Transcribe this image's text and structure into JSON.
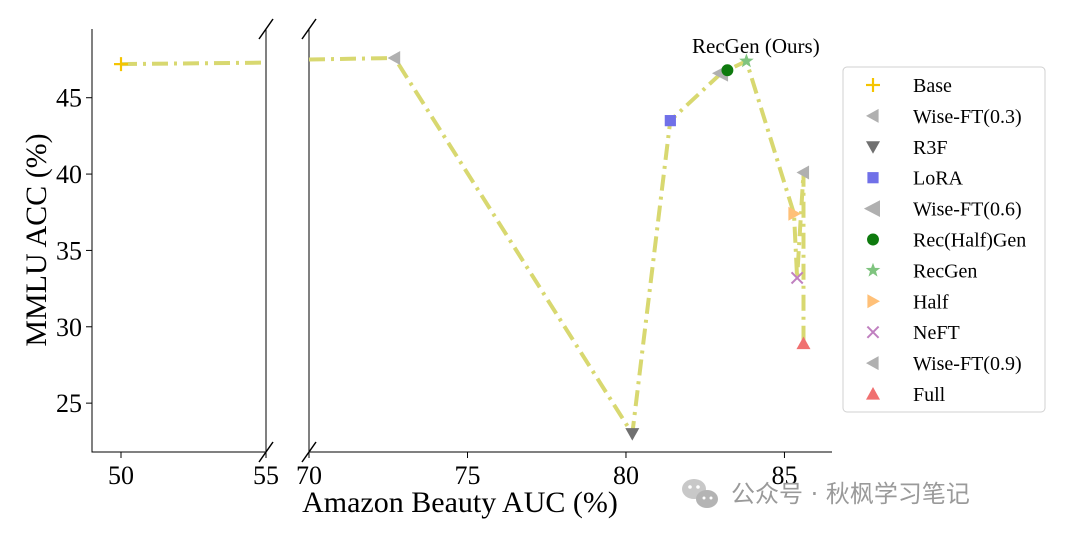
{
  "chart_data": {
    "type": "scatter",
    "xlabel": "Amazon Beauty AUC (%)",
    "ylabel": "MMLU ACC (%)",
    "broken_x_axis": true,
    "left_panel": {
      "xlim": [
        49,
        55
      ],
      "xticks": [
        "50",
        "55"
      ]
    },
    "right_panel": {
      "xlim": [
        70,
        86.5
      ],
      "xticks": [
        "70",
        "75",
        "80",
        "85"
      ]
    },
    "ylim": [
      21.8,
      49.5
    ],
    "yticks": [
      "25",
      "30",
      "35",
      "40",
      "45"
    ],
    "grid": false,
    "legend_position": "right",
    "series": [
      {
        "name": "Base",
        "marker": "plus",
        "color": "#f5c400",
        "x": 50.0,
        "y": 47.2
      },
      {
        "name": "Wise-FT(0.3)",
        "marker": "triangle-left",
        "color": "#b0b0b0",
        "x": 72.7,
        "y": 47.6
      },
      {
        "name": "R3F",
        "marker": "triangle-down",
        "color": "#707070",
        "x": 80.2,
        "y": 23.0
      },
      {
        "name": "LoRA",
        "marker": "square",
        "color": "#7070e8",
        "x": 81.4,
        "y": 43.5
      },
      {
        "name": "Wise-FT(0.6)",
        "marker": "triangle-left-large",
        "color": "#b0b0b0",
        "x": 83.0,
        "y": 46.6
      },
      {
        "name": "Rec(Half)Gen",
        "marker": "circle",
        "color": "#0e7a0e",
        "x": 83.2,
        "y": 46.8
      },
      {
        "name": "RecGen",
        "marker": "star",
        "color": "#7fc47f",
        "x": 83.8,
        "y": 47.4
      },
      {
        "name": "Half",
        "marker": "triangle-right",
        "color": "#ffc078",
        "x": 85.3,
        "y": 37.4
      },
      {
        "name": "NeFT",
        "marker": "x",
        "color": "#c080c0",
        "x": 85.4,
        "y": 33.2
      },
      {
        "name": "Wise-FT(0.9)",
        "marker": "triangle-left",
        "color": "#b0b0b0",
        "x": 85.6,
        "y": 40.1
      },
      {
        "name": "Full",
        "marker": "triangle-up",
        "color": "#f07070",
        "x": 85.6,
        "y": 28.9
      }
    ],
    "connecting_line": {
      "style": "dash-dot",
      "color": "#d8d870",
      "points": [
        [
          50.0,
          47.2
        ],
        [
          55.0,
          47.3
        ],
        [
          70.0,
          47.5
        ],
        [
          72.7,
          47.6
        ],
        [
          80.2,
          23.0
        ],
        [
          81.4,
          43.5
        ],
        [
          83.0,
          46.6
        ],
        [
          83.2,
          46.8
        ],
        [
          83.8,
          47.4
        ],
        [
          85.3,
          37.4
        ],
        [
          85.4,
          33.2
        ],
        [
          85.6,
          40.1
        ],
        [
          85.6,
          28.9
        ]
      ]
    },
    "annotations": [
      {
        "text": "RecGen (Ours)",
        "x": 83.8,
        "y": 47.4
      }
    ]
  },
  "watermark": {
    "text": "公众号 · 秋枫学习笔记",
    "icon": "wechat-icon"
  }
}
